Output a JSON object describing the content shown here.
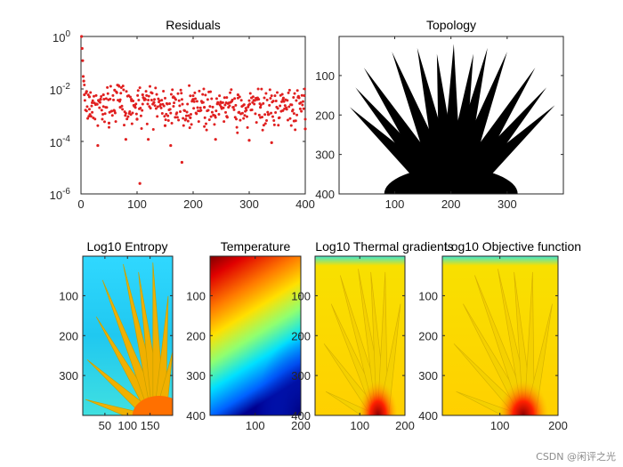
{
  "chart_data": [
    {
      "id": "residuals",
      "type": "scatter",
      "title": "Residuals",
      "xlabel": "",
      "ylabel": "",
      "xlim": [
        0,
        400
      ],
      "ylim": [
        1e-06,
        1
      ],
      "yscale": "log",
      "xticks": [
        "0",
        "100",
        "200",
        "300",
        "400"
      ],
      "yticks": [
        {
          "base": "10",
          "exp": "0"
        },
        {
          "base": "10",
          "exp": "-2"
        },
        {
          "base": "10",
          "exp": "-4"
        },
        {
          "base": "10",
          "exp": "-6"
        }
      ],
      "marker_color": "#e02020",
      "series": [
        {
          "name": "residual",
          "x": [
            1,
            2,
            3,
            4,
            5,
            6,
            10,
            15,
            20,
            30,
            35,
            40,
            50,
            60,
            70,
            80,
            90,
            100,
            105,
            110,
            120,
            130,
            150,
            160,
            165,
            180,
            195,
            200,
            220,
            240,
            250,
            260,
            280,
            300,
            320,
            340,
            360,
            380,
            400
          ],
          "y": [
            1,
            0.35,
            0.12,
            0.03,
            0.02,
            0.006,
            0.008,
            0.005,
            0.003,
            7e-05,
            0.004,
            0.006,
            0.0005,
            0.009,
            0.002,
            0.00012,
            0.004,
            0.0007,
            2.5e-06,
            0.006,
            0.00012,
            0.003,
            0.0004,
            7e-05,
            0.005,
            1.6e-05,
            0.0008,
            0.004,
            0.002,
            0.00012,
            0.003,
            0.0009,
            0.006,
            0.00011,
            0.002,
            9e-05,
            0.0015,
            0.0006,
            0.0003
          ]
        }
      ]
    },
    {
      "id": "topology",
      "type": "heatmap",
      "title": "Topology",
      "xticks": [
        "100",
        "200",
        "300"
      ],
      "yticks": [
        "100",
        "200",
        "300",
        "400"
      ],
      "xlim": [
        1,
        400
      ],
      "ylim": [
        1,
        400
      ],
      "colormap": "gray"
    },
    {
      "id": "entropy",
      "type": "heatmap",
      "title": "Log10 Entropy",
      "xticks": [
        "50",
        "100",
        "150"
      ],
      "yticks": [
        "100",
        "200",
        "300"
      ],
      "xlim": [
        1,
        200
      ],
      "ylim": [
        1,
        400
      ],
      "colormap": "jet"
    },
    {
      "id": "temperature",
      "type": "heatmap",
      "title": "Temperature",
      "xticks": [
        "100",
        "200"
      ],
      "yticks": [
        "100",
        "200",
        "300",
        "400"
      ],
      "xlim": [
        1,
        200
      ],
      "ylim": [
        1,
        400
      ],
      "colormap": "jet"
    },
    {
      "id": "gradients",
      "type": "heatmap",
      "title": "Log10 Thermal gradients",
      "xticks": [
        "100",
        "200"
      ],
      "yticks": [
        "100",
        "200",
        "300",
        "400"
      ],
      "xlim": [
        1,
        200
      ],
      "ylim": [
        1,
        400
      ],
      "colormap": "jet"
    },
    {
      "id": "objective",
      "type": "heatmap",
      "title": "Log10 Objective function",
      "xticks": [
        "100",
        "200"
      ],
      "yticks": [
        "100",
        "200",
        "300",
        "400"
      ],
      "xlim": [
        1,
        200
      ],
      "ylim": [
        1,
        400
      ],
      "colormap": "jet"
    }
  ],
  "watermark": "CSDN @闲评之光"
}
